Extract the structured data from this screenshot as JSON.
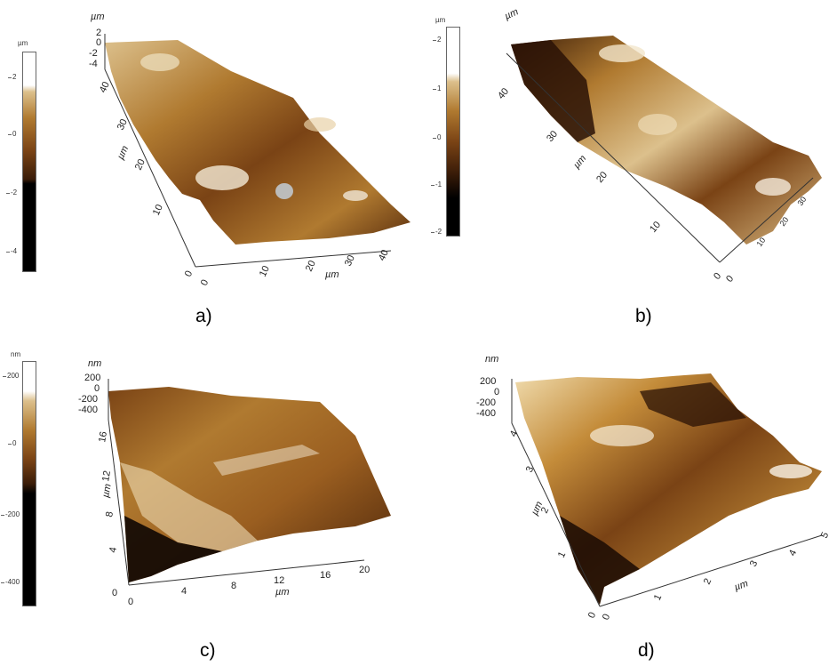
{
  "panels": [
    {
      "caption": "a)",
      "colorbar": {
        "unit": "µm",
        "ticks": [
          "2",
          "0",
          "-2",
          "-4"
        ]
      },
      "z_unit": "µm",
      "z_ticks": [
        "2",
        "0",
        "-2",
        "-4"
      ],
      "y_unit": "µm",
      "y_ticks": [
        "40",
        "30",
        "20",
        "10"
      ],
      "x_unit": "µm",
      "x_ticks": [
        "10",
        "20",
        "30",
        "40"
      ],
      "origin": [
        "0",
        "0"
      ]
    },
    {
      "caption": "b)",
      "colorbar": {
        "unit": "µm",
        "ticks": [
          "2",
          "1",
          "0",
          "-1",
          "-2"
        ]
      },
      "z_unit": "µm",
      "y_unit": "µm",
      "y_ticks": [
        "40",
        "30",
        "20",
        "10"
      ],
      "x_ticks": [
        "10",
        "20",
        "30"
      ],
      "origin": [
        "0",
        "0"
      ]
    },
    {
      "caption": "c)",
      "colorbar": {
        "unit": "nm",
        "ticks": [
          "200",
          "0",
          "-200",
          "-400"
        ]
      },
      "z_unit": "nm",
      "z_ticks": [
        "200",
        "0",
        "-200",
        "-400"
      ],
      "y_unit": "µm",
      "y_ticks": [
        "16",
        "12",
        "8",
        "4"
      ],
      "x_unit": "µm",
      "x_ticks": [
        "4",
        "8",
        "12",
        "16",
        "20"
      ],
      "origin": [
        "0",
        "0"
      ]
    },
    {
      "caption": "d)",
      "z_unit": "nm",
      "z_ticks": [
        "200",
        "0",
        "-200",
        "-400"
      ],
      "y_unit": "µm",
      "y_ticks": [
        "4",
        "3",
        "2",
        "1"
      ],
      "x_unit": "µm",
      "x_ticks": [
        "1",
        "2",
        "3",
        "4",
        "5"
      ],
      "origin": [
        "0",
        "0"
      ]
    }
  ],
  "colors": {
    "ramp": [
      "#000000",
      "#3a1c08",
      "#7a4315",
      "#b07a30",
      "#dcc08c",
      "#ffffff"
    ],
    "axis": "#333333"
  }
}
